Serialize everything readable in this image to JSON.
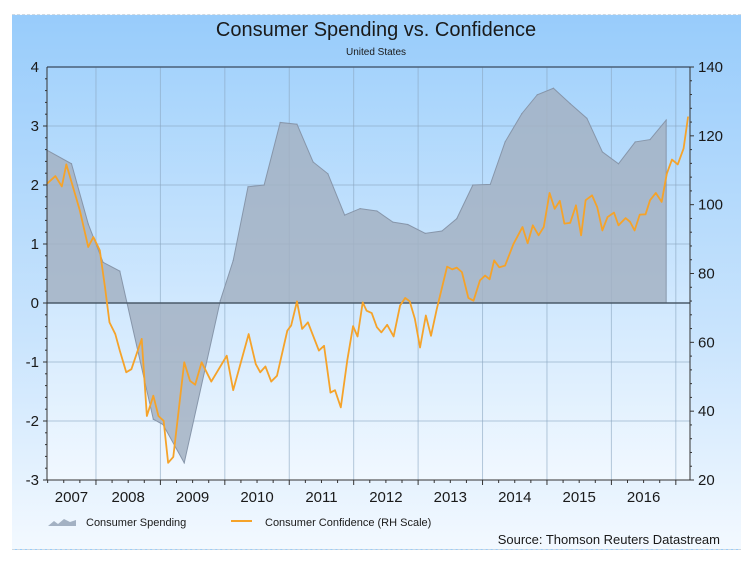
{
  "chart_data": {
    "type": "area+line",
    "title": "Consumer Spending vs. Confidence",
    "subtitle": "United States",
    "source": "Source: Thomson Reuters Datastream",
    "x_ticks": [
      "2007",
      "2008",
      "2009",
      "2010",
      "2011",
      "2012",
      "2013",
      "2014",
      "2015",
      "2016"
    ],
    "xlim": [
      2007.24,
      2017.22
    ],
    "y_left": {
      "lim": [
        -3,
        4
      ],
      "ticks": [
        "4",
        "3",
        "2",
        "1",
        "0",
        "-1",
        "-2",
        "-3"
      ]
    },
    "y_right": {
      "lim": [
        20,
        140
      ],
      "ticks": [
        "140",
        "120",
        "100",
        "80",
        "60",
        "40",
        "20"
      ]
    },
    "grid": true,
    "legend_position": "bottom-left",
    "colors": {
      "spending_fill": "#a3b1c3",
      "spending_stroke": "#8796aa",
      "confidence": "#f5a32a",
      "zero_line": "#4a5a6a"
    },
    "series": [
      {
        "name": "Consumer Spending",
        "axis": "left",
        "type": "area",
        "x": [
          2007.24,
          2007.62,
          2007.88,
          2008.11,
          2008.37,
          2008.89,
          2009.04,
          2009.37,
          2009.93,
          2010.13,
          2010.36,
          2010.61,
          2010.86,
          2011.12,
          2011.37,
          2011.6,
          2011.86,
          2012.1,
          2012.36,
          2012.61,
          2012.84,
          2013.11,
          2013.37,
          2013.6,
          2013.85,
          2014.12,
          2014.35,
          2014.61,
          2014.85,
          2015.1,
          2015.36,
          2015.62,
          2015.86,
          2016.11,
          2016.37,
          2016.6,
          2016.85
        ],
        "y": [
          2.59,
          2.36,
          1.34,
          0.69,
          0.54,
          -1.97,
          -2.06,
          -2.71,
          0.04,
          0.72,
          1.97,
          2.0,
          3.06,
          3.03,
          2.39,
          2.19,
          1.49,
          1.6,
          1.56,
          1.37,
          1.33,
          1.18,
          1.22,
          1.43,
          2.0,
          2.01,
          2.73,
          3.21,
          3.53,
          3.64,
          3.38,
          3.13,
          2.56,
          2.36,
          2.73,
          2.77,
          3.1
        ]
      },
      {
        "name": "Consumer Confidence (RH Scale)",
        "axis": "right",
        "type": "line",
        "x": [
          2007.24,
          2007.37,
          2007.47,
          2007.54,
          2007.65,
          2007.75,
          2007.88,
          2007.96,
          2008.06,
          2008.14,
          2008.21,
          2008.3,
          2008.37,
          2008.47,
          2008.55,
          2008.71,
          2008.79,
          2008.89,
          2008.97,
          2009.05,
          2009.12,
          2009.2,
          2009.37,
          2009.46,
          2009.54,
          2009.64,
          2009.79,
          2010.03,
          2010.13,
          2010.37,
          2010.48,
          2010.55,
          2010.63,
          2010.72,
          2010.81,
          2010.97,
          2011.03,
          2011.12,
          2011.2,
          2011.29,
          2011.46,
          2011.54,
          2011.64,
          2011.71,
          2011.8,
          2011.9,
          2011.99,
          2012.06,
          2012.14,
          2012.2,
          2012.28,
          2012.36,
          2012.43,
          2012.52,
          2012.62,
          2012.72,
          2012.8,
          2012.87,
          2012.95,
          2013.03,
          2013.12,
          2013.2,
          2013.29,
          2013.45,
          2013.53,
          2013.6,
          2013.68,
          2013.78,
          2013.86,
          2013.96,
          2014.04,
          2014.11,
          2014.18,
          2014.26,
          2014.35,
          2014.48,
          2014.62,
          2014.7,
          2014.78,
          2014.87,
          2014.95,
          2015.04,
          2015.12,
          2015.2,
          2015.27,
          2015.36,
          2015.45,
          2015.53,
          2015.6,
          2015.7,
          2015.78,
          2015.86,
          2015.94,
          2016.04,
          2016.11,
          2016.22,
          2016.29,
          2016.36,
          2016.44,
          2016.53,
          2016.6,
          2016.69,
          2016.78,
          2016.86,
          2016.94,
          2017.03,
          2017.12,
          2017.19
        ],
        "y": [
          106.1,
          108.3,
          105.3,
          111.7,
          104.7,
          98.3,
          87.7,
          90.6,
          86.7,
          76,
          65.8,
          62.4,
          57.6,
          51.3,
          52.2,
          61,
          38.6,
          44.5,
          38.6,
          37.2,
          25,
          26.7,
          54.2,
          48.8,
          47.7,
          54.2,
          48.6,
          56.1,
          46.1,
          62.4,
          53.7,
          51.3,
          53,
          48.6,
          50.3,
          63.4,
          64.9,
          71.9,
          63.9,
          65.8,
          57.6,
          59,
          45.4,
          46.1,
          41.1,
          54.7,
          64.7,
          61.7,
          71.6,
          69.2,
          68.5,
          64.4,
          62.9,
          65.1,
          61.7,
          70.7,
          72.9,
          71.9,
          66.8,
          58.5,
          67.8,
          61.9,
          69.7,
          82,
          81.2,
          81.7,
          80.4,
          72.9,
          72.1,
          78,
          79.4,
          78.3,
          83.8,
          81.8,
          82.3,
          88.6,
          93.5,
          88.8,
          94,
          91.1,
          93.5,
          103.4,
          98.8,
          101.1,
          94.5,
          94.7,
          99.8,
          91.1,
          101.3,
          102.7,
          99.3,
          92.5,
          96.4,
          97.7,
          94,
          96.1,
          95,
          92.5,
          97.1,
          97.2,
          101.3,
          103.4,
          100.8,
          109,
          113.1,
          111.7,
          116.3,
          125.5
        ]
      }
    ]
  }
}
